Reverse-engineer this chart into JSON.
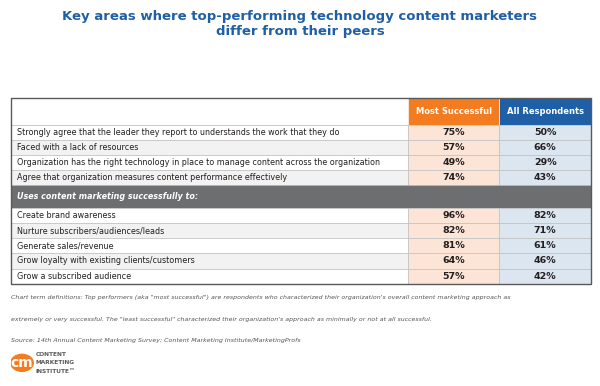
{
  "title_line1": "Key areas where top-performing technology content marketers",
  "title_line2": "differ from their peers",
  "title_color": "#1f5fa6",
  "col1_header": "Most Successful",
  "col2_header": "All Respondents",
  "col1_header_color": "#f47c20",
  "col2_header_color": "#1f5fa6",
  "rows": [
    {
      "label": "Strongly agree that the leader they report to understands the work that they do",
      "val1": "75%",
      "val2": "50%",
      "is_section": false
    },
    {
      "label": "Faced with a lack of resources",
      "val1": "57%",
      "val2": "66%",
      "is_section": false
    },
    {
      "label": "Organization has the right technology in place to manage content across the organization",
      "val1": "49%",
      "val2": "29%",
      "is_section": false
    },
    {
      "label": "Agree that organization measures content performance effectively",
      "val1": "74%",
      "val2": "43%",
      "is_section": false
    },
    {
      "label": "Uses content marketing successfully to:",
      "val1": "",
      "val2": "",
      "is_section": true
    },
    {
      "label": "Create brand awareness",
      "val1": "96%",
      "val2": "82%",
      "is_section": false
    },
    {
      "label": "Nurture subscribers/audiences/leads",
      "val1": "82%",
      "val2": "71%",
      "is_section": false
    },
    {
      "label": "Generate sales/revenue",
      "val1": "81%",
      "val2": "61%",
      "is_section": false
    },
    {
      "label": "Grow loyalty with existing clients/customers",
      "val1": "64%",
      "val2": "46%",
      "is_section": false
    },
    {
      "label": "Grow a subscribed audience",
      "val1": "57%",
      "val2": "42%",
      "is_section": false
    }
  ],
  "footer_line1": "Chart term definitions: Top performers (aka \"most successful\") are respondents who characterized their organization's overall content marketing approach as",
  "footer_line2": "extremely or very successful. The \"least successful\" characterized their organization's approach as minimally or not at all successful.",
  "footer_line3": "Source: 14th Annual Content Marketing Survey; Content Marketing Institute/MarketingProfs",
  "section_bg": "#6d6e70",
  "section_text_color": "#ffffff",
  "row_bg_odd": "#ffffff",
  "row_bg_even": "#f2f2f2",
  "col1_bg": "#fce4d6",
  "col2_bg": "#dce6f1",
  "header_text_color": "#ffffff",
  "label_text_color": "#231f20",
  "value_text_color": "#231f20",
  "border_color": "#c0c0c0",
  "outer_border_color": "#595959"
}
